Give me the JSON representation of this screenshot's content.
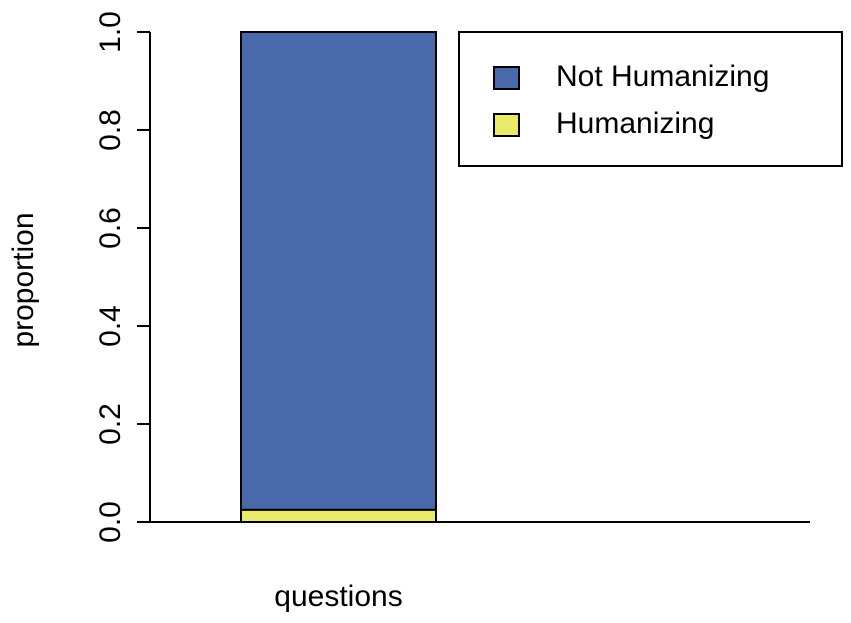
{
  "chart_data": {
    "type": "stacked_bar",
    "categories": [
      "questions"
    ],
    "series": [
      {
        "name": "Humanizing",
        "color": "#eaea6a",
        "values": [
          0.025
        ]
      },
      {
        "name": "Not Humanizing",
        "color": "#4a69aa",
        "values": [
          0.975
        ]
      }
    ],
    "y_label": "proportion",
    "ylim": [
      0,
      1
    ],
    "yticks": [
      {
        "value": 0,
        "label": "0.0"
      },
      0.2,
      0.4,
      0.6,
      0.8,
      {
        "value": 1,
        "label": "1.0"
      }
    ],
    "legend": "top-right"
  }
}
